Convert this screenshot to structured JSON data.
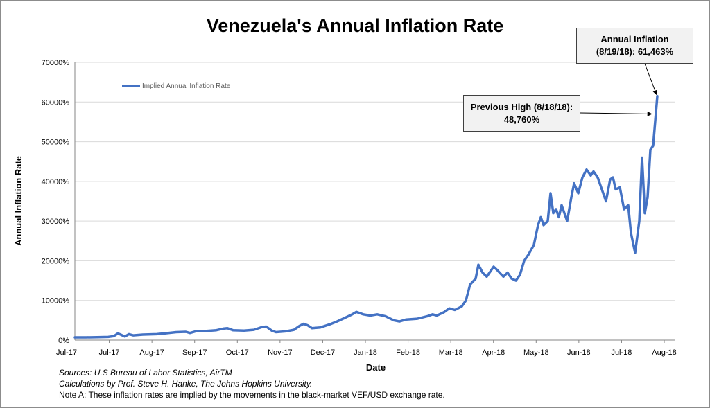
{
  "chart_data": {
    "type": "line",
    "title": "Venezuela's Annual Inflation Rate",
    "xlabel": "Date",
    "ylabel": "Annual Inflation Rate",
    "x_tick_labels": [
      "Jul-17",
      "Jul-17",
      "Aug-17",
      "Sep-17",
      "Oct-17",
      "Nov-17",
      "Dec-17",
      "Jan-18",
      "Feb-18",
      "Mar-18",
      "Apr-18",
      "May-18",
      "Jun-18",
      "Jul-18",
      "Aug-18"
    ],
    "y_tick_labels": [
      "0%",
      "10000%",
      "20000%",
      "30000%",
      "40000%",
      "50000%",
      "60000%",
      "70000%"
    ],
    "ylim": [
      0,
      70000
    ],
    "grid": "horizontal",
    "legend_position": "top-left",
    "series": [
      {
        "name": "Implied Annual Inflation Rate",
        "color": "#4472c4",
        "points": [
          [
            "2017-06-16",
            700
          ],
          [
            "2017-06-24",
            700
          ],
          [
            "2017-07-02",
            750
          ],
          [
            "2017-07-10",
            800
          ],
          [
            "2017-07-14",
            1000
          ],
          [
            "2017-07-17",
            1700
          ],
          [
            "2017-07-19",
            1400
          ],
          [
            "2017-07-22",
            900
          ],
          [
            "2017-07-25",
            1500
          ],
          [
            "2017-07-28",
            1200
          ],
          [
            "2017-08-04",
            1400
          ],
          [
            "2017-08-14",
            1500
          ],
          [
            "2017-08-20",
            1700
          ],
          [
            "2017-08-28",
            2000
          ],
          [
            "2017-09-04",
            2100
          ],
          [
            "2017-09-07",
            1800
          ],
          [
            "2017-09-12",
            2300
          ],
          [
            "2017-09-19",
            2300
          ],
          [
            "2017-09-26",
            2500
          ],
          [
            "2017-10-01",
            2900
          ],
          [
            "2017-10-04",
            3000
          ],
          [
            "2017-10-08",
            2500
          ],
          [
            "2017-10-16",
            2400
          ],
          [
            "2017-10-23",
            2600
          ],
          [
            "2017-10-29",
            3300
          ],
          [
            "2017-11-01",
            3400
          ],
          [
            "2017-11-05",
            2400
          ],
          [
            "2017-11-08",
            2000
          ],
          [
            "2017-11-15",
            2200
          ],
          [
            "2017-11-21",
            2600
          ],
          [
            "2017-11-25",
            3600
          ],
          [
            "2017-11-28",
            4100
          ],
          [
            "2017-12-01",
            3700
          ],
          [
            "2017-12-04",
            3000
          ],
          [
            "2017-12-10",
            3200
          ],
          [
            "2017-12-17",
            4000
          ],
          [
            "2017-12-22",
            4700
          ],
          [
            "2017-12-27",
            5500
          ],
          [
            "2018-01-02",
            6500
          ],
          [
            "2018-01-05",
            7100
          ],
          [
            "2018-01-10",
            6500
          ],
          [
            "2018-01-15",
            6200
          ],
          [
            "2018-01-20",
            6500
          ],
          [
            "2018-01-26",
            6000
          ],
          [
            "2018-02-01",
            5000
          ],
          [
            "2018-02-05",
            4700
          ],
          [
            "2018-02-10",
            5200
          ],
          [
            "2018-02-18",
            5400
          ],
          [
            "2018-02-25",
            6000
          ],
          [
            "2018-03-01",
            6500
          ],
          [
            "2018-03-04",
            6200
          ],
          [
            "2018-03-09",
            7000
          ],
          [
            "2018-03-13",
            8000
          ],
          [
            "2018-03-17",
            7600
          ],
          [
            "2018-03-22",
            8500
          ],
          [
            "2018-03-25",
            10000
          ],
          [
            "2018-03-28",
            14000
          ],
          [
            "2018-04-01",
            15500
          ],
          [
            "2018-04-03",
            19000
          ],
          [
            "2018-04-06",
            17000
          ],
          [
            "2018-04-09",
            16000
          ],
          [
            "2018-04-12",
            17500
          ],
          [
            "2018-04-14",
            18500
          ],
          [
            "2018-04-17",
            17500
          ],
          [
            "2018-04-21",
            16000
          ],
          [
            "2018-04-24",
            17000
          ],
          [
            "2018-04-27",
            15500
          ],
          [
            "2018-04-30",
            15000
          ],
          [
            "2018-05-03",
            16500
          ],
          [
            "2018-05-06",
            20000
          ],
          [
            "2018-05-09",
            21500
          ],
          [
            "2018-05-13",
            24000
          ],
          [
            "2018-05-16",
            29000
          ],
          [
            "2018-05-18",
            31000
          ],
          [
            "2018-05-20",
            29000
          ],
          [
            "2018-05-23",
            30000
          ],
          [
            "2018-05-25",
            37000
          ],
          [
            "2018-05-27",
            32000
          ],
          [
            "2018-05-29",
            33000
          ],
          [
            "2018-05-31",
            31000
          ],
          [
            "2018-06-02",
            34000
          ],
          [
            "2018-06-04",
            32000
          ],
          [
            "2018-06-06",
            30000
          ],
          [
            "2018-06-09",
            36000
          ],
          [
            "2018-06-11",
            39500
          ],
          [
            "2018-06-14",
            37000
          ],
          [
            "2018-06-17",
            41000
          ],
          [
            "2018-06-20",
            43000
          ],
          [
            "2018-06-23",
            41500
          ],
          [
            "2018-06-25",
            42500
          ],
          [
            "2018-06-28",
            41000
          ],
          [
            "2018-07-01",
            38000
          ],
          [
            "2018-07-04",
            35000
          ],
          [
            "2018-07-07",
            40500
          ],
          [
            "2018-07-09",
            41000
          ],
          [
            "2018-07-11",
            38000
          ],
          [
            "2018-07-14",
            38500
          ],
          [
            "2018-07-17",
            33000
          ],
          [
            "2018-07-20",
            34000
          ],
          [
            "2018-07-22",
            27000
          ],
          [
            "2018-07-25",
            22000
          ],
          [
            "2018-07-28",
            30000
          ],
          [
            "2018-07-30",
            46000
          ],
          [
            "2018-08-01",
            32000
          ],
          [
            "2018-08-03",
            36000
          ],
          [
            "2018-08-05",
            48000
          ],
          [
            "2018-08-07",
            49000
          ],
          [
            "2018-08-10",
            61500
          ]
        ]
      }
    ],
    "annotations": [
      {
        "lines": [
          "Annual Inflation",
          "(8/19/18): 61,463%"
        ],
        "points_to": [
          "2018-08-10",
          61500
        ]
      },
      {
        "lines": [
          "Previous High (8/18/18):",
          "48,760%"
        ],
        "points_to": [
          "2018-08-07",
          57000
        ]
      }
    ]
  },
  "footnotes": [
    {
      "text": "Sources: U.S Bureau of Labor Statistics, AirTM",
      "italic": true
    },
    {
      "text": "Calculations by Prof. Steve H. Hanke, The Johns Hopkins University.",
      "italic": true
    },
    {
      "text": "Note A: These inflation rates are implied by the movements in the black-market VEF/USD exchange rate.",
      "italic": false
    }
  ]
}
